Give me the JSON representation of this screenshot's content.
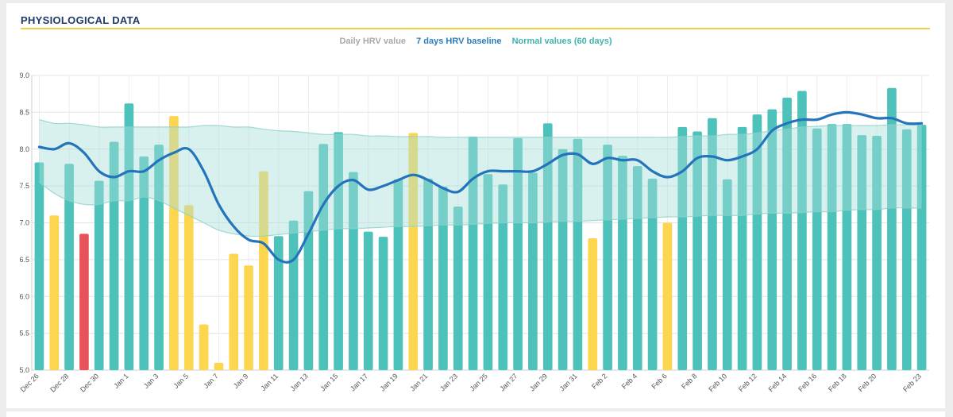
{
  "panel": {
    "title": "PHYSIOLOGICAL DATA"
  },
  "legend": {
    "daily": "Daily HRV value",
    "baseline": "7 days HRV baseline",
    "normal": "Normal values (60 days)"
  },
  "colors": {
    "normal_bar": "#4cc2ba",
    "warning_bar": "#fdd64f",
    "alert_bar": "#e8525a",
    "baseline_line": "#2474bb",
    "normal_band": "#a9ddd9"
  },
  "chart_data": {
    "type": "bar",
    "ylim": [
      5.0,
      9.0
    ],
    "y_ticks": [
      "5.0",
      "5.5",
      "6.0",
      "6.5",
      "7.0",
      "7.5",
      "8.0",
      "8.5",
      "9.0"
    ],
    "grid": true,
    "x_tick_labels": [
      "Dec 26",
      "Dec 28",
      "Dec 30",
      "Jan 1",
      "Jan 3",
      "Jan 5",
      "Jan 7",
      "Jan 9",
      "Jan 11",
      "Jan 13",
      "Jan 15",
      "Jan 17",
      "Jan 19",
      "Jan 21",
      "Jan 23",
      "Jan 25",
      "Jan 27",
      "Jan 29",
      "Jan 31",
      "Feb 2",
      "Feb 4",
      "Feb 6",
      "Feb 8",
      "Feb 10",
      "Feb 12",
      "Feb 14",
      "Feb 16",
      "Feb 18",
      "Feb 20",
      "Feb 23"
    ],
    "x_tick_indices": [
      0,
      2,
      4,
      6,
      8,
      10,
      12,
      14,
      16,
      18,
      20,
      22,
      24,
      26,
      28,
      30,
      32,
      34,
      36,
      38,
      40,
      42,
      44,
      46,
      48,
      50,
      52,
      54,
      56,
      59
    ],
    "series": [
      {
        "name": "Daily HRV value",
        "values": [
          7.82,
          7.1,
          7.8,
          6.85,
          7.57,
          8.1,
          8.62,
          7.9,
          8.06,
          8.45,
          7.24,
          5.62,
          5.1,
          6.58,
          6.42,
          7.7,
          6.82,
          7.03,
          7.43,
          8.07,
          8.23,
          7.69,
          6.88,
          6.81,
          7.59,
          8.22,
          7.6,
          7.49,
          7.22,
          8.17,
          7.66,
          7.52,
          8.15,
          7.68,
          8.35,
          8.0,
          8.14,
          6.79,
          8.06,
          7.91,
          7.77,
          7.6,
          7.0,
          8.3,
          8.24,
          8.42,
          7.59,
          8.3,
          8.47,
          8.54,
          8.7,
          8.79,
          8.28,
          8.34,
          8.34,
          8.19,
          8.18,
          8.83,
          8.27,
          8.33
        ],
        "status": [
          "n",
          "w",
          "n",
          "r",
          "n",
          "n",
          "n",
          "n",
          "n",
          "w",
          "w",
          "w",
          "w",
          "w",
          "w",
          "w",
          "n",
          "n",
          "n",
          "n",
          "n",
          "n",
          "n",
          "n",
          "n",
          "w",
          "n",
          "n",
          "n",
          "n",
          "n",
          "n",
          "n",
          "n",
          "n",
          "n",
          "n",
          "w",
          "n",
          "n",
          "n",
          "n",
          "w",
          "n",
          "n",
          "n",
          "n",
          "n",
          "n",
          "n",
          "n",
          "n",
          "n",
          "n",
          "n",
          "n",
          "n",
          "n",
          "n",
          "n"
        ]
      },
      {
        "name": "7 days HRV baseline",
        "values": [
          8.03,
          8.0,
          8.08,
          7.95,
          7.7,
          7.62,
          7.7,
          7.7,
          7.85,
          7.95,
          8.0,
          7.7,
          7.25,
          6.95,
          6.77,
          6.72,
          6.5,
          6.5,
          6.85,
          7.25,
          7.5,
          7.58,
          7.45,
          7.5,
          7.58,
          7.65,
          7.58,
          7.47,
          7.42,
          7.6,
          7.7,
          7.7,
          7.7,
          7.7,
          7.8,
          7.92,
          7.93,
          7.8,
          7.88,
          7.85,
          7.85,
          7.7,
          7.62,
          7.7,
          7.88,
          7.9,
          7.85,
          7.9,
          8.0,
          8.25,
          8.35,
          8.4,
          8.4,
          8.47,
          8.5,
          8.47,
          8.42,
          8.42,
          8.35,
          8.35
        ]
      },
      {
        "name": "Normal values (60 days)",
        "upper": [
          8.4,
          8.35,
          8.35,
          8.33,
          8.3,
          8.3,
          8.3,
          8.3,
          8.3,
          8.3,
          8.3,
          8.32,
          8.32,
          8.3,
          8.3,
          8.27,
          8.25,
          8.24,
          8.22,
          8.2,
          8.2,
          8.2,
          8.18,
          8.18,
          8.17,
          8.17,
          8.17,
          8.16,
          8.16,
          8.16,
          8.16,
          8.16,
          8.16,
          8.16,
          8.16,
          8.16,
          8.16,
          8.16,
          8.16,
          8.16,
          8.16,
          8.16,
          8.16,
          8.17,
          8.18,
          8.18,
          8.2,
          8.2,
          8.22,
          8.25,
          8.27,
          8.3,
          8.31,
          8.32,
          8.32,
          8.32,
          8.32,
          8.33,
          8.33,
          8.33
        ],
        "lower": [
          7.55,
          7.4,
          7.3,
          7.25,
          7.25,
          7.3,
          7.3,
          7.35,
          7.3,
          7.2,
          7.1,
          7.0,
          6.9,
          6.85,
          6.82,
          6.82,
          6.84,
          6.86,
          6.88,
          6.9,
          6.92,
          6.92,
          6.93,
          6.94,
          6.95,
          6.95,
          6.96,
          6.97,
          6.97,
          6.98,
          6.99,
          7.0,
          7.0,
          7.0,
          7.01,
          7.02,
          7.02,
          7.03,
          7.04,
          7.05,
          7.06,
          7.07,
          7.08,
          7.08,
          7.09,
          7.1,
          7.1,
          7.1,
          7.12,
          7.13,
          7.13,
          7.14,
          7.15,
          7.15,
          7.17,
          7.18,
          7.18,
          7.2,
          7.2,
          7.2
        ]
      }
    ]
  }
}
